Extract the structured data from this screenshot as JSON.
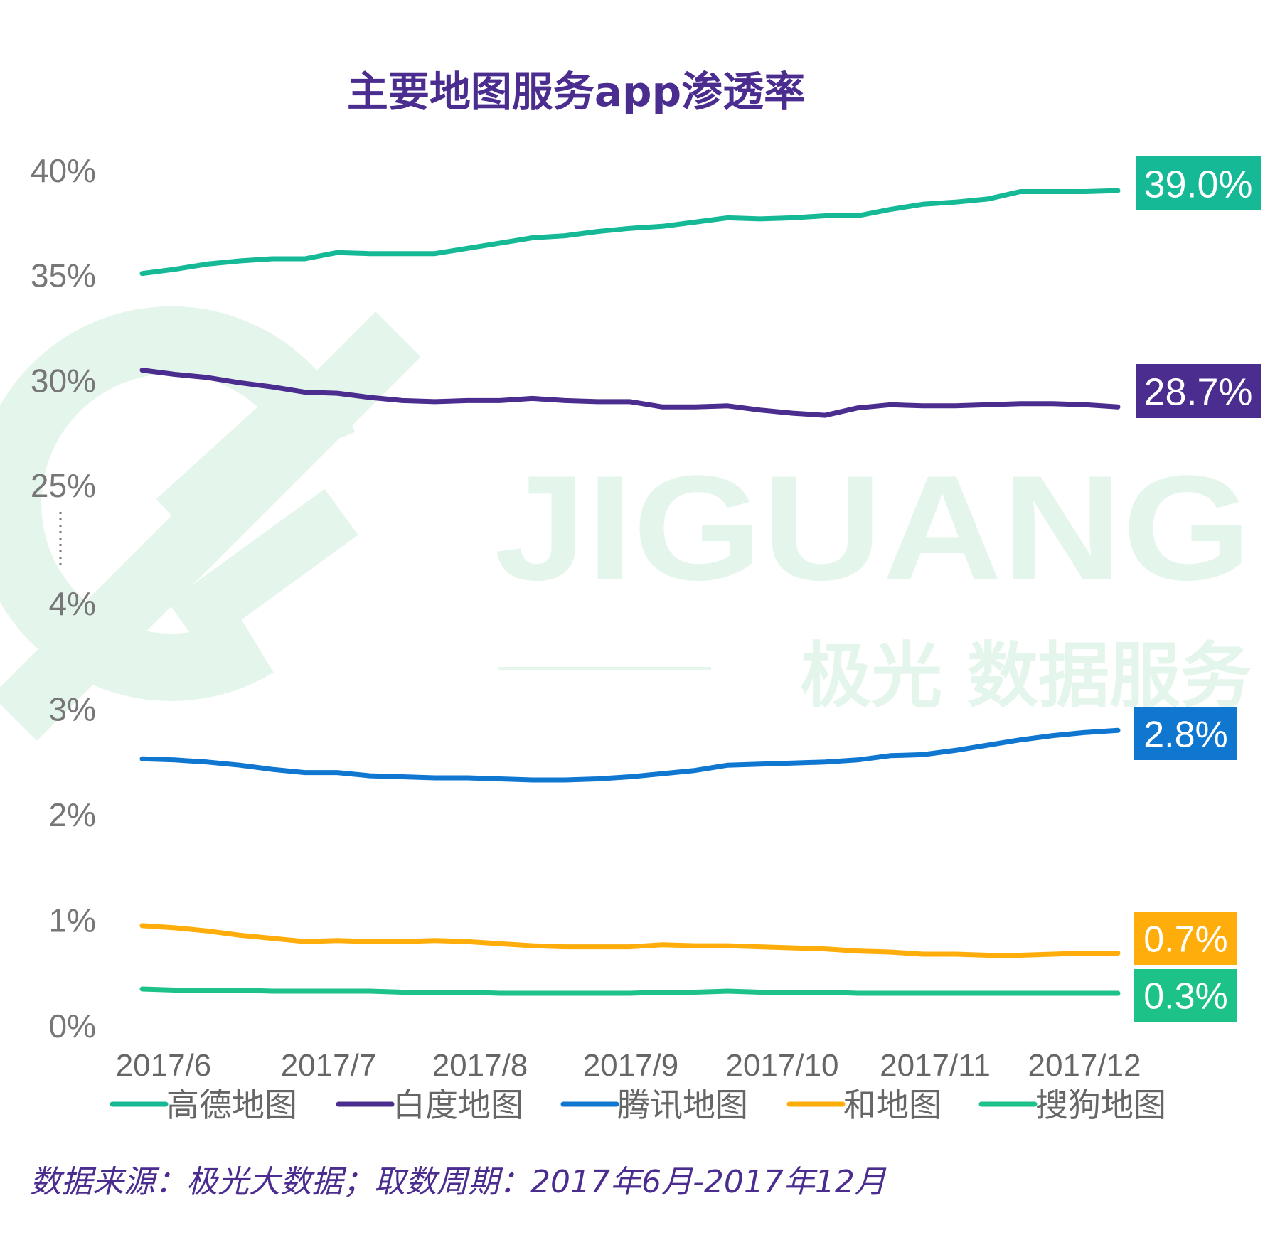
{
  "watermark": {
    "brand": "JIGUANG",
    "tagline": "极光 数据服务"
  },
  "chart_data": {
    "type": "line",
    "title": "主要地图服务app渗透率",
    "source": "数据来源：极光大数据；取数周期：2017年6月-2017年12月",
    "y_axis": {
      "note": "broken axis: 0%-4% lower segment, 25%-40% upper segment",
      "tick_labels": [
        "0%",
        "1%",
        "2%",
        "3%",
        "4%",
        "25%",
        "30%",
        "35%",
        "40%"
      ],
      "tick_values": [
        0,
        1,
        2,
        3,
        4,
        25,
        30,
        35,
        40
      ],
      "lower_range": [
        0,
        4
      ],
      "upper_range": [
        25,
        40
      ]
    },
    "x_tick_labels": [
      "2017/6",
      "2017/7",
      "2017/8",
      "2017/9",
      "2017/10",
      "2017/11",
      "2017/12"
    ],
    "x_tick_index": [
      0,
      5,
      10,
      15,
      20,
      25,
      30
    ],
    "points_count": 31,
    "series": [
      {
        "name": "高德地图",
        "color": "#16B996",
        "values": [
          35.1,
          35.3,
          35.55,
          35.7,
          35.8,
          35.8,
          36.1,
          36.05,
          36.05,
          36.05,
          36.3,
          36.55,
          36.8,
          36.9,
          37.1,
          37.25,
          37.35,
          37.55,
          37.75,
          37.7,
          37.75,
          37.85,
          37.85,
          38.15,
          38.4,
          38.5,
          38.65,
          39.0,
          39.0,
          39.0,
          39.05
        ],
        "end_label": "39.0%"
      },
      {
        "name": "白度地图",
        "color": "#4B2D8F",
        "values": [
          30.5,
          30.3,
          30.15,
          29.9,
          29.7,
          29.45,
          29.4,
          29.2,
          29.05,
          29.0,
          29.05,
          29.05,
          29.15,
          29.05,
          29.0,
          29.0,
          28.75,
          28.75,
          28.8,
          28.6,
          28.45,
          28.35,
          28.7,
          28.85,
          28.8,
          28.8,
          28.85,
          28.9,
          28.9,
          28.85,
          28.75
        ],
        "end_label": "28.7%"
      },
      {
        "name": "腾讯地图",
        "color": "#1077D1",
        "values": [
          2.53,
          2.52,
          2.5,
          2.47,
          2.43,
          2.4,
          2.4,
          2.37,
          2.36,
          2.35,
          2.35,
          2.34,
          2.33,
          2.33,
          2.34,
          2.36,
          2.39,
          2.42,
          2.47,
          2.48,
          2.49,
          2.5,
          2.52,
          2.56,
          2.57,
          2.61,
          2.66,
          2.71,
          2.75,
          2.78,
          2.8
        ],
        "end_label": "2.8%"
      },
      {
        "name": "和地图",
        "color": "#FFAD0B",
        "values": [
          0.95,
          0.93,
          0.9,
          0.86,
          0.83,
          0.8,
          0.81,
          0.8,
          0.8,
          0.81,
          0.8,
          0.78,
          0.76,
          0.75,
          0.75,
          0.75,
          0.77,
          0.76,
          0.76,
          0.75,
          0.74,
          0.73,
          0.71,
          0.7,
          0.68,
          0.68,
          0.67,
          0.67,
          0.68,
          0.69,
          0.69
        ],
        "end_label": "0.7%"
      },
      {
        "name": "搜狗地图",
        "color": "#1DC288",
        "values": [
          0.35,
          0.34,
          0.34,
          0.34,
          0.33,
          0.33,
          0.33,
          0.33,
          0.32,
          0.32,
          0.32,
          0.31,
          0.31,
          0.31,
          0.31,
          0.31,
          0.32,
          0.32,
          0.33,
          0.32,
          0.32,
          0.32,
          0.31,
          0.31,
          0.31,
          0.31,
          0.31,
          0.31,
          0.31,
          0.31,
          0.31
        ],
        "end_label": "0.3%"
      }
    ]
  }
}
